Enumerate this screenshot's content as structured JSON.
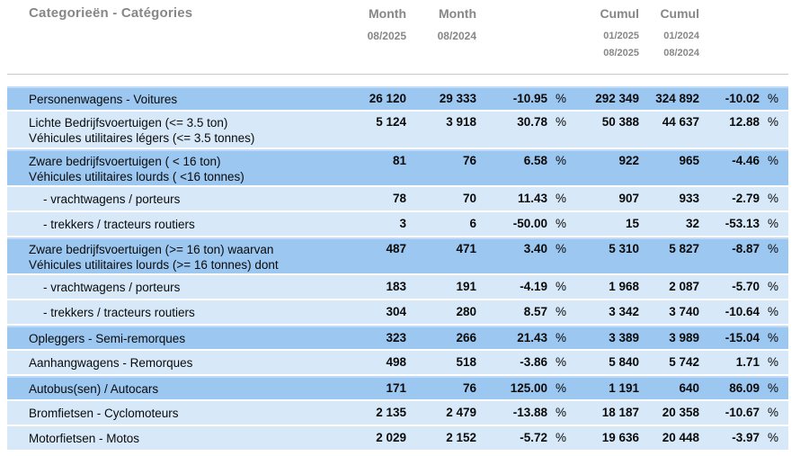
{
  "header": {
    "category": "Categorieën - Catégories",
    "month_2025": {
      "title": "Month",
      "date": "08/2025"
    },
    "month_2024": {
      "title": "Month",
      "date": "08/2024"
    },
    "cumul_2025": {
      "title": "Cumul",
      "date_from": "01/2025",
      "date_to": "08/2025"
    },
    "cumul_2024": {
      "title": "Cumul",
      "date_from": "01/2024",
      "date_to": "08/2024"
    }
  },
  "table": {
    "percent_sign": "%",
    "rows": [
      {
        "label_nl": "Personenwagens - Voitures",
        "label_fr": "",
        "indent": false,
        "tone": "dark",
        "month_2025": "26 120",
        "month_2024": "29 333",
        "month_pct": "-10.95",
        "cumul_2025": "292 349",
        "cumul_2024": "324 892",
        "cumul_pct": "-10.02"
      },
      {
        "label_nl": "Lichte Bedrijfsvoertuigen (<= 3.5 ton)",
        "label_fr": "Véhicules utilitaires légers (<= 3.5 tonnes)",
        "indent": false,
        "tone": "light",
        "month_2025": "5 124",
        "month_2024": "3 918",
        "month_pct": "30.78",
        "cumul_2025": "50 388",
        "cumul_2024": "44 637",
        "cumul_pct": "12.88"
      },
      {
        "label_nl": "Zware bedrijfsvoertuigen ( < 16 ton)",
        "label_fr": "Véhicules utilitaires lourds ( <16 tonnes)",
        "indent": false,
        "tone": "dark",
        "month_2025": "81",
        "month_2024": "76",
        "month_pct": "6.58",
        "cumul_2025": "922",
        "cumul_2024": "965",
        "cumul_pct": "-4.46"
      },
      {
        "label_nl": "- vrachtwagens / porteurs",
        "label_fr": "",
        "indent": true,
        "tone": "light",
        "month_2025": "78",
        "month_2024": "70",
        "month_pct": "11.43",
        "cumul_2025": "907",
        "cumul_2024": "933",
        "cumul_pct": "-2.79"
      },
      {
        "label_nl": "- trekkers / tracteurs routiers",
        "label_fr": "",
        "indent": true,
        "tone": "light",
        "month_2025": "3",
        "month_2024": "6",
        "month_pct": "-50.00",
        "cumul_2025": "15",
        "cumul_2024": "32",
        "cumul_pct": "-53.13"
      },
      {
        "label_nl": "Zware bedrijfsvoertuigen (>= 16 ton) waarvan",
        "label_fr": "Véhicules utilitaires lourds (>= 16 tonnes) dont",
        "indent": false,
        "tone": "dark",
        "month_2025": "487",
        "month_2024": "471",
        "month_pct": "3.40",
        "cumul_2025": "5 310",
        "cumul_2024": "5 827",
        "cumul_pct": "-8.87"
      },
      {
        "label_nl": "- vrachtwagens / porteurs",
        "label_fr": "",
        "indent": true,
        "tone": "light",
        "month_2025": "183",
        "month_2024": "191",
        "month_pct": "-4.19",
        "cumul_2025": "1 968",
        "cumul_2024": "2 087",
        "cumul_pct": "-5.70"
      },
      {
        "label_nl": "- trekkers / tracteurs routiers",
        "label_fr": "",
        "indent": true,
        "tone": "light",
        "month_2025": "304",
        "month_2024": "280",
        "month_pct": "8.57",
        "cumul_2025": "3 342",
        "cumul_2024": "3 740",
        "cumul_pct": "-10.64"
      },
      {
        "label_nl": "Opleggers - Semi-remorques",
        "label_fr": "",
        "indent": false,
        "tone": "dark",
        "month_2025": "323",
        "month_2024": "266",
        "month_pct": "21.43",
        "cumul_2025": "3 389",
        "cumul_2024": "3 989",
        "cumul_pct": "-15.04"
      },
      {
        "label_nl": "Aanhangwagens - Remorques",
        "label_fr": "",
        "indent": false,
        "tone": "light",
        "month_2025": "498",
        "month_2024": "518",
        "month_pct": "-3.86",
        "cumul_2025": "5 840",
        "cumul_2024": "5 742",
        "cumul_pct": "1.71"
      },
      {
        "label_nl": "Autobus(sen) / Autocars",
        "label_fr": "",
        "indent": false,
        "tone": "dark",
        "month_2025": "171",
        "month_2024": "76",
        "month_pct": "125.00",
        "cumul_2025": "1 191",
        "cumul_2024": "640",
        "cumul_pct": "86.09"
      },
      {
        "label_nl": "Bromfietsen - Cyclomoteurs",
        "label_fr": "",
        "indent": false,
        "tone": "light",
        "month_2025": "2 135",
        "month_2024": "2 479",
        "month_pct": "-13.88",
        "cumul_2025": "18 187",
        "cumul_2024": "20 358",
        "cumul_pct": "-10.67"
      },
      {
        "label_nl": "Motorfietsen - Motos",
        "label_fr": "",
        "indent": false,
        "tone": "light",
        "month_2025": "2 029",
        "month_2024": "2 152",
        "month_pct": "-5.72",
        "cumul_2025": "19 636",
        "cumul_2024": "20 448",
        "cumul_pct": "-3.97"
      }
    ]
  },
  "colors": {
    "dark_row": "#9CC7F0",
    "dark_row_edge": "#BFDBF7",
    "light_row": "#D7E9F9",
    "header_text": "#878787",
    "divider": "#C9C9C9",
    "body_text": "#0A0A0A"
  }
}
